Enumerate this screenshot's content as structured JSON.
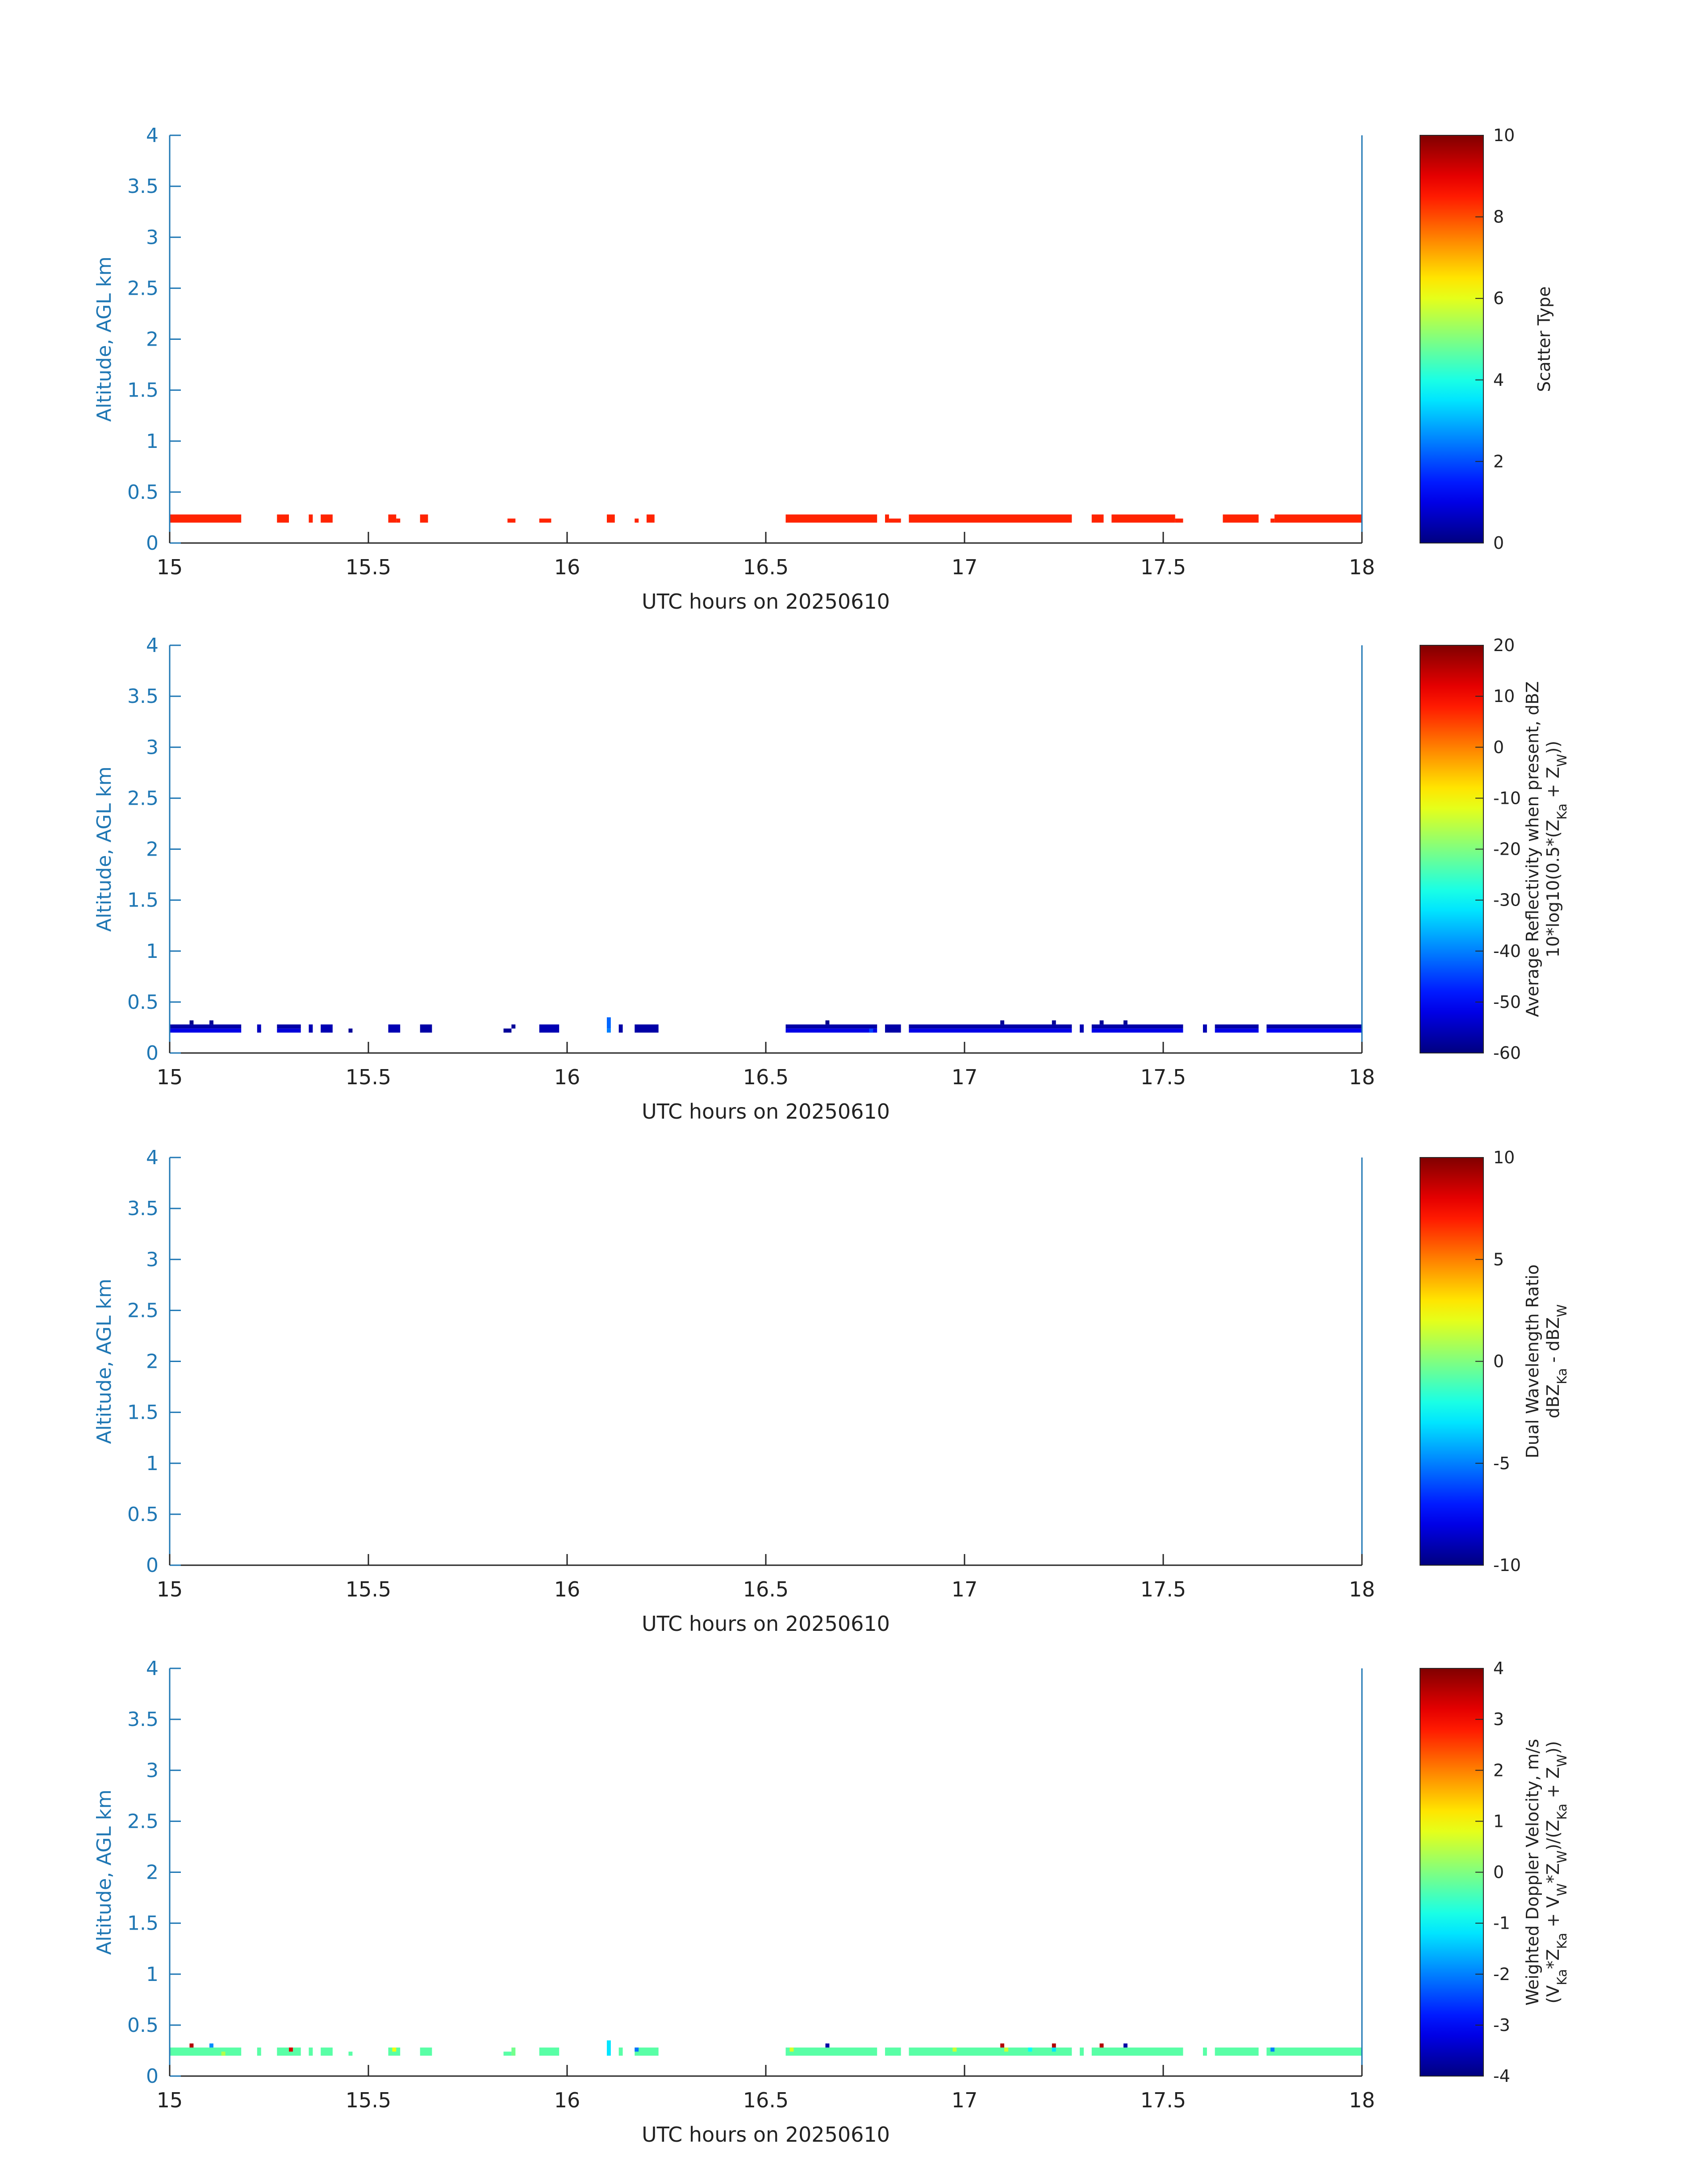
{
  "chart_data": [
    {
      "type": "heatmap",
      "title": "",
      "xlabel": "UTC hours on 20250610",
      "ylabel": "Altitude, AGL km",
      "xlim": [
        15,
        18
      ],
      "ylim": [
        0,
        4
      ],
      "xticks": [
        "15",
        "15.5",
        "16",
        "16.5",
        "17",
        "17.5",
        "18"
      ],
      "yticks": [
        "0",
        "0.5",
        "1",
        "1.5",
        "2",
        "2.5",
        "3",
        "3.5",
        "4"
      ],
      "colorbar": {
        "label_lines": [
          "Scatter Type"
        ],
        "range": [
          0,
          10
        ],
        "ticks": [
          "0",
          "2",
          "4",
          "6",
          "8",
          "10"
        ],
        "colormap": "jet"
      },
      "cells": [
        {
          "x0": 15.0,
          "x1": 15.18,
          "y0": 0.2,
          "y1": 0.28,
          "v": 8.4
        },
        {
          "x0": 15.27,
          "x1": 15.3,
          "y0": 0.2,
          "y1": 0.28,
          "v": 8.4
        },
        {
          "x0": 15.35,
          "x1": 15.36,
          "y0": 0.2,
          "y1": 0.28,
          "v": 8.4
        },
        {
          "x0": 15.38,
          "x1": 15.41,
          "y0": 0.2,
          "y1": 0.28,
          "v": 8.4
        },
        {
          "x0": 15.55,
          "x1": 15.57,
          "y0": 0.2,
          "y1": 0.28,
          "v": 8.4
        },
        {
          "x0": 15.57,
          "x1": 15.58,
          "y0": 0.2,
          "y1": 0.24,
          "v": 8.4
        },
        {
          "x0": 15.63,
          "x1": 15.65,
          "y0": 0.2,
          "y1": 0.28,
          "v": 8.4
        },
        {
          "x0": 15.85,
          "x1": 15.87,
          "y0": 0.2,
          "y1": 0.24,
          "v": 8.4
        },
        {
          "x0": 15.93,
          "x1": 15.96,
          "y0": 0.2,
          "y1": 0.24,
          "v": 8.4
        },
        {
          "x0": 16.1,
          "x1": 16.12,
          "y0": 0.2,
          "y1": 0.28,
          "v": 8.4
        },
        {
          "x0": 16.17,
          "x1": 16.18,
          "y0": 0.2,
          "y1": 0.24,
          "v": 8.4
        },
        {
          "x0": 16.2,
          "x1": 16.22,
          "y0": 0.2,
          "y1": 0.28,
          "v": 8.4
        },
        {
          "x0": 16.55,
          "x1": 16.78,
          "y0": 0.2,
          "y1": 0.28,
          "v": 8.4
        },
        {
          "x0": 16.8,
          "x1": 16.81,
          "y0": 0.2,
          "y1": 0.28,
          "v": 8.4
        },
        {
          "x0": 16.81,
          "x1": 16.84,
          "y0": 0.2,
          "y1": 0.24,
          "v": 8.4
        },
        {
          "x0": 16.86,
          "x1": 17.27,
          "y0": 0.2,
          "y1": 0.28,
          "v": 8.4
        },
        {
          "x0": 17.32,
          "x1": 17.35,
          "y0": 0.2,
          "y1": 0.28,
          "v": 8.4
        },
        {
          "x0": 17.37,
          "x1": 17.53,
          "y0": 0.2,
          "y1": 0.28,
          "v": 8.4
        },
        {
          "x0": 17.53,
          "x1": 17.55,
          "y0": 0.2,
          "y1": 0.24,
          "v": 8.4
        },
        {
          "x0": 17.65,
          "x1": 17.74,
          "y0": 0.2,
          "y1": 0.28,
          "v": 8.4
        },
        {
          "x0": 17.77,
          "x1": 17.78,
          "y0": 0.2,
          "y1": 0.24,
          "v": 8.4
        },
        {
          "x0": 17.78,
          "x1": 18.0,
          "y0": 0.2,
          "y1": 0.28,
          "v": 8.4
        }
      ]
    },
    {
      "type": "heatmap",
      "title": "",
      "xlabel": "UTC hours on 20250610",
      "ylabel": "Altitude, AGL km",
      "xlim": [
        15,
        18
      ],
      "ylim": [
        0,
        4
      ],
      "xticks": [
        "15",
        "15.5",
        "16",
        "16.5",
        "17",
        "17.5",
        "18"
      ],
      "yticks": [
        "0",
        "0.5",
        "1",
        "1.5",
        "2",
        "2.5",
        "3",
        "3.5",
        "4"
      ],
      "colorbar": {
        "label_lines": [
          "Average Reflectivity when present, dBZ",
          "10*log10(0.5*(Z",
          "Ka",
          " + Z",
          "W",
          "))"
        ],
        "range": [
          -60,
          20
        ],
        "ticks": [
          "-60",
          "-50",
          "-40",
          "-30",
          "-20",
          "-10",
          "0",
          "10",
          "20"
        ],
        "colormap": "jet"
      },
      "cells": [
        {
          "x0": 15.0,
          "x1": 15.18,
          "y0": 0.24,
          "y1": 0.28,
          "v": -57
        },
        {
          "x0": 15.0,
          "x1": 15.18,
          "y0": 0.2,
          "y1": 0.24,
          "v": -52
        },
        {
          "x0": 15.05,
          "x1": 15.06,
          "y0": 0.28,
          "y1": 0.32,
          "v": -59
        },
        {
          "x0": 15.1,
          "x1": 15.11,
          "y0": 0.28,
          "y1": 0.32,
          "v": -58
        },
        {
          "x0": 15.22,
          "x1": 15.23,
          "y0": 0.2,
          "y1": 0.28,
          "v": -55
        },
        {
          "x0": 15.27,
          "x1": 15.33,
          "y0": 0.24,
          "y1": 0.28,
          "v": -57
        },
        {
          "x0": 15.27,
          "x1": 15.33,
          "y0": 0.2,
          "y1": 0.24,
          "v": -53
        },
        {
          "x0": 15.35,
          "x1": 15.36,
          "y0": 0.2,
          "y1": 0.28,
          "v": -56
        },
        {
          "x0": 15.38,
          "x1": 15.41,
          "y0": 0.2,
          "y1": 0.28,
          "v": -56
        },
        {
          "x0": 15.45,
          "x1": 15.46,
          "y0": 0.2,
          "y1": 0.24,
          "v": -58
        },
        {
          "x0": 15.55,
          "x1": 15.58,
          "y0": 0.2,
          "y1": 0.28,
          "v": -56
        },
        {
          "x0": 15.63,
          "x1": 15.66,
          "y0": 0.2,
          "y1": 0.28,
          "v": -57
        },
        {
          "x0": 15.84,
          "x1": 15.86,
          "y0": 0.2,
          "y1": 0.24,
          "v": -58
        },
        {
          "x0": 15.86,
          "x1": 15.87,
          "y0": 0.24,
          "y1": 0.28,
          "v": -58
        },
        {
          "x0": 15.93,
          "x1": 15.98,
          "y0": 0.2,
          "y1": 0.28,
          "v": -56
        },
        {
          "x0": 16.1,
          "x1": 16.11,
          "y0": 0.24,
          "y1": 0.35,
          "v": -42
        },
        {
          "x0": 16.1,
          "x1": 16.11,
          "y0": 0.2,
          "y1": 0.24,
          "v": -40
        },
        {
          "x0": 16.13,
          "x1": 16.14,
          "y0": 0.2,
          "y1": 0.28,
          "v": -57
        },
        {
          "x0": 16.17,
          "x1": 16.23,
          "y0": 0.2,
          "y1": 0.28,
          "v": -57
        },
        {
          "x0": 16.55,
          "x1": 16.78,
          "y0": 0.24,
          "y1": 0.28,
          "v": -57
        },
        {
          "x0": 16.55,
          "x1": 16.78,
          "y0": 0.2,
          "y1": 0.24,
          "v": -52
        },
        {
          "x0": 16.65,
          "x1": 16.66,
          "y0": 0.28,
          "y1": 0.32,
          "v": -59
        },
        {
          "x0": 16.76,
          "x1": 16.77,
          "y0": 0.2,
          "y1": 0.24,
          "v": -45
        },
        {
          "x0": 16.8,
          "x1": 16.84,
          "y0": 0.2,
          "y1": 0.28,
          "v": -57
        },
        {
          "x0": 16.86,
          "x1": 17.27,
          "y0": 0.24,
          "y1": 0.28,
          "v": -57
        },
        {
          "x0": 16.86,
          "x1": 17.27,
          "y0": 0.2,
          "y1": 0.24,
          "v": -52
        },
        {
          "x0": 17.09,
          "x1": 17.1,
          "y0": 0.28,
          "y1": 0.32,
          "v": -58
        },
        {
          "x0": 17.22,
          "x1": 17.23,
          "y0": 0.28,
          "y1": 0.32,
          "v": -58
        },
        {
          "x0": 17.29,
          "x1": 17.3,
          "y0": 0.2,
          "y1": 0.28,
          "v": -56
        },
        {
          "x0": 17.32,
          "x1": 17.55,
          "y0": 0.24,
          "y1": 0.28,
          "v": -57
        },
        {
          "x0": 17.32,
          "x1": 17.55,
          "y0": 0.2,
          "y1": 0.24,
          "v": -52
        },
        {
          "x0": 17.34,
          "x1": 17.35,
          "y0": 0.28,
          "y1": 0.32,
          "v": -58
        },
        {
          "x0": 17.4,
          "x1": 17.41,
          "y0": 0.28,
          "y1": 0.32,
          "v": -58
        },
        {
          "x0": 17.6,
          "x1": 17.61,
          "y0": 0.2,
          "y1": 0.28,
          "v": -56
        },
        {
          "x0": 17.63,
          "x1": 17.74,
          "y0": 0.24,
          "y1": 0.28,
          "v": -57
        },
        {
          "x0": 17.63,
          "x1": 17.74,
          "y0": 0.2,
          "y1": 0.24,
          "v": -52
        },
        {
          "x0": 17.76,
          "x1": 18.0,
          "y0": 0.24,
          "y1": 0.28,
          "v": -57
        },
        {
          "x0": 17.76,
          "x1": 18.0,
          "y0": 0.2,
          "y1": 0.24,
          "v": -51
        }
      ]
    },
    {
      "type": "heatmap",
      "title": "",
      "xlabel": "UTC hours on 20250610",
      "ylabel": "Altitude, AGL km",
      "xlim": [
        15,
        18
      ],
      "ylim": [
        0,
        4
      ],
      "xticks": [
        "15",
        "15.5",
        "16",
        "16.5",
        "17",
        "17.5",
        "18"
      ],
      "yticks": [
        "0",
        "0.5",
        "1",
        "1.5",
        "2",
        "2.5",
        "3",
        "3.5",
        "4"
      ],
      "colorbar": {
        "label_lines": [
          "Dual Wavelength Ratio",
          "dBZ",
          "Ka",
          " - dBZ",
          "W"
        ],
        "range": [
          -10,
          10
        ],
        "ticks": [
          "-10",
          "-5",
          "0",
          "5",
          "10"
        ],
        "colormap": "jet"
      },
      "cells": []
    },
    {
      "type": "heatmap",
      "title": "",
      "xlabel": "UTC hours on 20250610",
      "ylabel": "Altitude, AGL km",
      "xlim": [
        15,
        18
      ],
      "ylim": [
        0,
        4
      ],
      "xticks": [
        "15",
        "15.5",
        "16",
        "16.5",
        "17",
        "17.5",
        "18"
      ],
      "yticks": [
        "0",
        "0.5",
        "1",
        "1.5",
        "2",
        "2.5",
        "3",
        "3.5",
        "4"
      ],
      "colorbar": {
        "label_lines": [
          "Weighted Doppler Velocity, m/s",
          "(V",
          "Ka",
          "*Z",
          "Ka",
          " + V",
          "W",
          "*Z",
          "W",
          ")/(Z",
          "Ka",
          " + Z",
          "W",
          "))"
        ],
        "range": [
          -4,
          4
        ],
        "ticks": [
          "-4",
          "-3",
          "-2",
          "-1",
          "0",
          "1",
          "2",
          "3",
          "4"
        ],
        "colormap": "jet"
      },
      "cells": [
        {
          "x0": 15.0,
          "x1": 15.18,
          "y0": 0.2,
          "y1": 0.28,
          "v": -0.3
        },
        {
          "x0": 15.05,
          "x1": 15.06,
          "y0": 0.28,
          "y1": 0.32,
          "v": 3.6
        },
        {
          "x0": 15.1,
          "x1": 15.11,
          "y0": 0.28,
          "y1": 0.32,
          "v": -1.9
        },
        {
          "x0": 15.13,
          "x1": 15.14,
          "y0": 0.2,
          "y1": 0.24,
          "v": 0.4
        },
        {
          "x0": 15.22,
          "x1": 15.23,
          "y0": 0.2,
          "y1": 0.28,
          "v": -0.3
        },
        {
          "x0": 15.27,
          "x1": 15.33,
          "y0": 0.2,
          "y1": 0.28,
          "v": -0.3
        },
        {
          "x0": 15.3,
          "x1": 15.31,
          "y0": 0.24,
          "y1": 0.28,
          "v": 3.3
        },
        {
          "x0": 15.35,
          "x1": 15.36,
          "y0": 0.2,
          "y1": 0.28,
          "v": -0.3
        },
        {
          "x0": 15.38,
          "x1": 15.41,
          "y0": 0.2,
          "y1": 0.28,
          "v": -0.3
        },
        {
          "x0": 15.45,
          "x1": 15.46,
          "y0": 0.2,
          "y1": 0.24,
          "v": -0.3
        },
        {
          "x0": 15.55,
          "x1": 15.58,
          "y0": 0.2,
          "y1": 0.28,
          "v": -0.3
        },
        {
          "x0": 15.56,
          "x1": 15.57,
          "y0": 0.24,
          "y1": 0.28,
          "v": 0.9
        },
        {
          "x0": 15.63,
          "x1": 15.66,
          "y0": 0.2,
          "y1": 0.28,
          "v": -0.3
        },
        {
          "x0": 15.84,
          "x1": 15.86,
          "y0": 0.2,
          "y1": 0.24,
          "v": -0.3
        },
        {
          "x0": 15.86,
          "x1": 15.87,
          "y0": 0.2,
          "y1": 0.28,
          "v": -0.1
        },
        {
          "x0": 15.93,
          "x1": 15.98,
          "y0": 0.2,
          "y1": 0.28,
          "v": -0.3
        },
        {
          "x0": 16.1,
          "x1": 16.11,
          "y0": 0.2,
          "y1": 0.35,
          "v": -1.2
        },
        {
          "x0": 16.13,
          "x1": 16.14,
          "y0": 0.2,
          "y1": 0.28,
          "v": -0.3
        },
        {
          "x0": 16.17,
          "x1": 16.23,
          "y0": 0.2,
          "y1": 0.28,
          "v": -0.3
        },
        {
          "x0": 16.17,
          "x1": 16.18,
          "y0": 0.24,
          "y1": 0.28,
          "v": -2.1
        },
        {
          "x0": 16.55,
          "x1": 16.78,
          "y0": 0.2,
          "y1": 0.28,
          "v": -0.3
        },
        {
          "x0": 16.56,
          "x1": 16.57,
          "y0": 0.24,
          "y1": 0.28,
          "v": 0.7
        },
        {
          "x0": 16.65,
          "x1": 16.66,
          "y0": 0.28,
          "y1": 0.32,
          "v": -3.7
        },
        {
          "x0": 16.8,
          "x1": 16.84,
          "y0": 0.2,
          "y1": 0.28,
          "v": -0.3
        },
        {
          "x0": 16.86,
          "x1": 17.27,
          "y0": 0.2,
          "y1": 0.28,
          "v": -0.3
        },
        {
          "x0": 16.97,
          "x1": 16.98,
          "y0": 0.24,
          "y1": 0.28,
          "v": 0.6
        },
        {
          "x0": 17.09,
          "x1": 17.1,
          "y0": 0.28,
          "y1": 0.32,
          "v": 3.6
        },
        {
          "x0": 17.1,
          "x1": 17.11,
          "y0": 0.24,
          "y1": 0.28,
          "v": 0.6
        },
        {
          "x0": 17.16,
          "x1": 17.17,
          "y0": 0.24,
          "y1": 0.28,
          "v": -1.0
        },
        {
          "x0": 17.22,
          "x1": 17.23,
          "y0": 0.28,
          "y1": 0.32,
          "v": 3.6
        },
        {
          "x0": 17.22,
          "x1": 17.23,
          "y0": 0.24,
          "y1": 0.28,
          "v": -1.2
        },
        {
          "x0": 17.29,
          "x1": 17.3,
          "y0": 0.2,
          "y1": 0.28,
          "v": -0.3
        },
        {
          "x0": 17.32,
          "x1": 17.55,
          "y0": 0.2,
          "y1": 0.28,
          "v": -0.3
        },
        {
          "x0": 17.34,
          "x1": 17.35,
          "y0": 0.28,
          "y1": 0.32,
          "v": 3.6
        },
        {
          "x0": 17.4,
          "x1": 17.41,
          "y0": 0.28,
          "y1": 0.32,
          "v": -3.7
        },
        {
          "x0": 17.6,
          "x1": 17.61,
          "y0": 0.2,
          "y1": 0.28,
          "v": -0.3
        },
        {
          "x0": 17.63,
          "x1": 17.74,
          "y0": 0.2,
          "y1": 0.28,
          "v": -0.3
        },
        {
          "x0": 17.76,
          "x1": 18.0,
          "y0": 0.2,
          "y1": 0.28,
          "v": -0.3
        },
        {
          "x0": 17.77,
          "x1": 17.78,
          "y0": 0.24,
          "y1": 0.28,
          "v": -2.0
        }
      ]
    }
  ]
}
